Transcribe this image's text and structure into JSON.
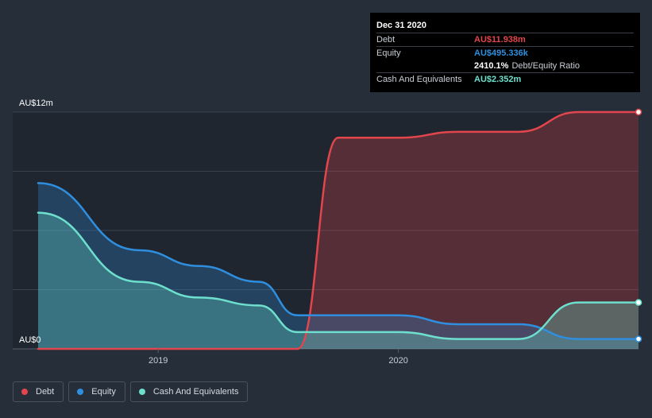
{
  "tooltip": {
    "date": "Dec 31 2020",
    "debt_label": "Debt",
    "debt_value": "AU$11.938m",
    "equity_label": "Equity",
    "equity_value": "AU$495.336k",
    "ratio_value": "2410.1%",
    "ratio_label": "Debt/Equity Ratio",
    "cash_label": "Cash And Equivalents",
    "cash_value": "AU$2.352m"
  },
  "legend": {
    "debt": "Debt",
    "equity": "Equity",
    "cash": "Cash And Equivalents"
  },
  "colors": {
    "background": "#262e3a",
    "plot_past": "#1f2630",
    "debt": "#e2464c",
    "equity": "#2f8fde",
    "cash": "#6de0cd"
  },
  "chart_data": {
    "type": "area",
    "title": "",
    "xlabel": "",
    "ylabel": "",
    "ylim": [
      0,
      12
    ],
    "y_unit": "AU$m",
    "y_tick_labels": [
      {
        "value": 12,
        "label": "AU$12m"
      },
      {
        "value": 0,
        "label": "AU$0"
      }
    ],
    "x_tick_labels": [
      {
        "x": 2019.0,
        "label": "2019"
      },
      {
        "x": 2020.0,
        "label": "2020"
      }
    ],
    "xlim": [
      2018.5,
      2021.0
    ],
    "x": [
      2018.5,
      2018.92,
      2019.17,
      2019.42,
      2019.58,
      2019.75,
      2020.0,
      2020.25,
      2020.5,
      2020.75,
      2021.0
    ],
    "series": [
      {
        "name": "Debt",
        "values": [
          0.0,
          0.0,
          0.0,
          0.0,
          0.0,
          10.7,
          10.7,
          11.0,
          11.0,
          12.0,
          12.0
        ]
      },
      {
        "name": "Equity",
        "values": [
          8.4,
          5.0,
          4.2,
          3.4,
          1.7,
          1.7,
          1.7,
          1.25,
          1.25,
          0.5,
          0.5
        ]
      },
      {
        "name": "Cash And Equivalents",
        "values": [
          6.9,
          3.4,
          2.6,
          2.2,
          0.85,
          0.85,
          0.85,
          0.5,
          0.5,
          2.35,
          2.35
        ]
      }
    ]
  }
}
